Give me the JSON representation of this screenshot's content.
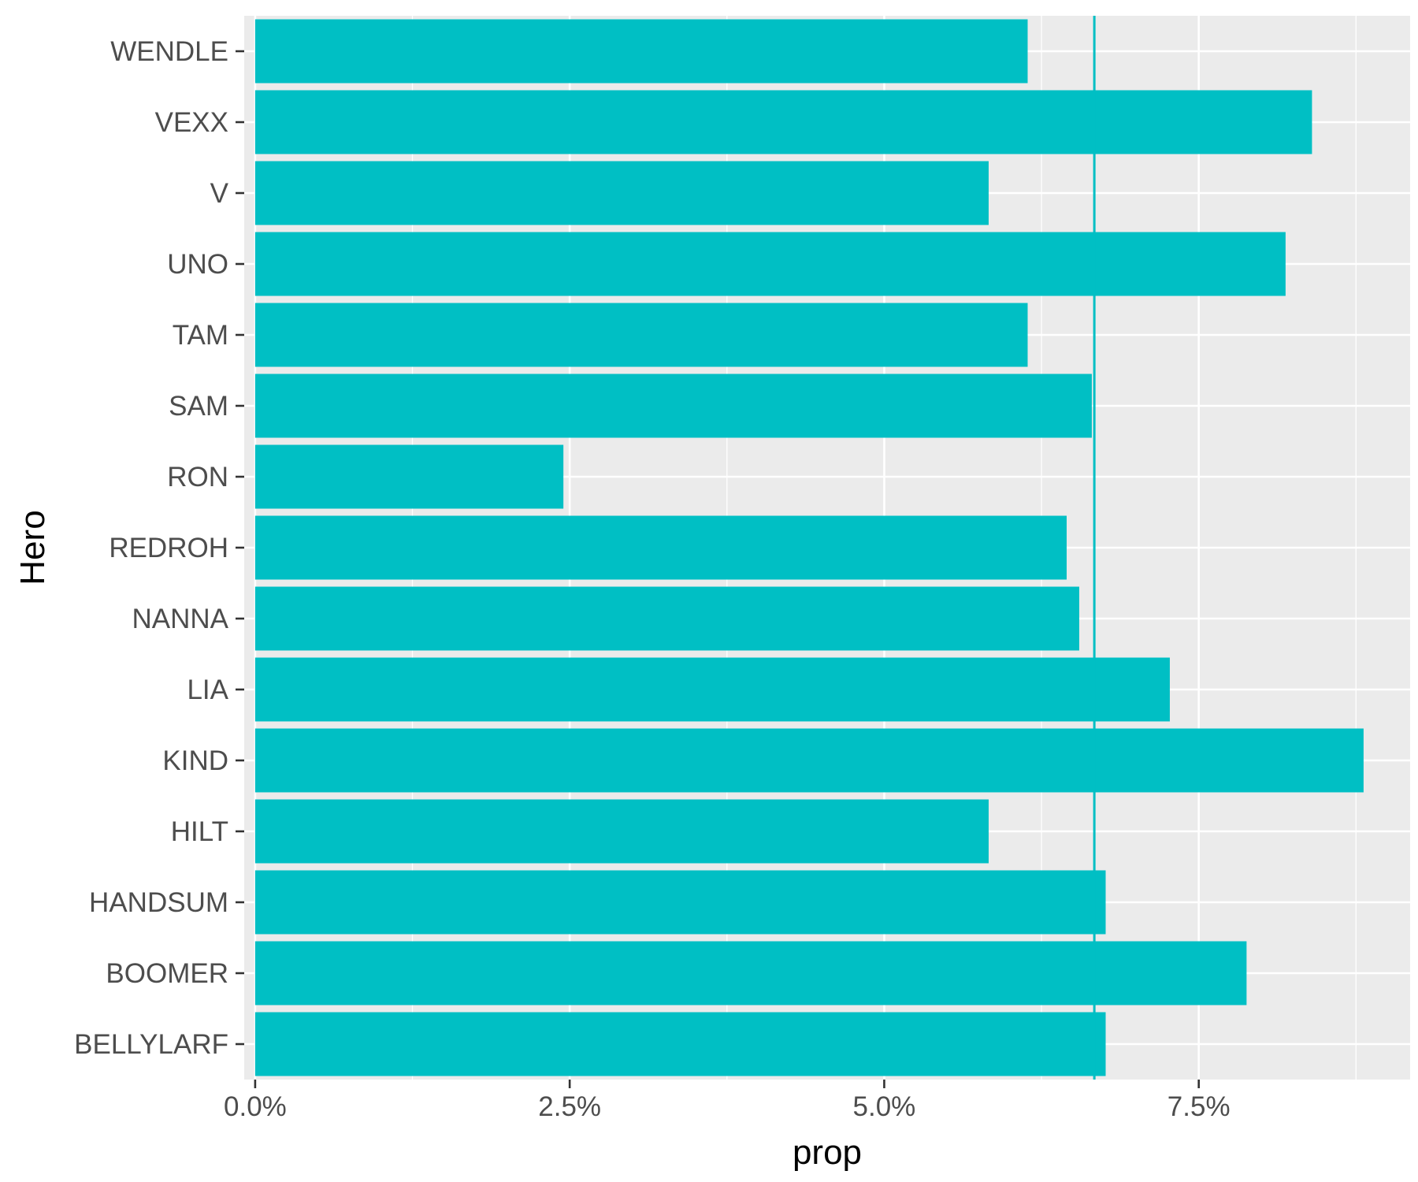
{
  "chart_data": {
    "type": "bar",
    "orientation": "horizontal",
    "xlabel": "prop",
    "ylabel": "Hero",
    "xlim": [
      -0.00087,
      0.0918
    ],
    "x_ticks": [
      0,
      0.025,
      0.05,
      0.075
    ],
    "x_tick_labels": [
      "0.0%",
      "2.5%",
      "5.0%",
      "7.5%"
    ],
    "categories": [
      "BELLYLARF",
      "BOOMER",
      "HANDSUM",
      "HILT",
      "KIND",
      "LIA",
      "NANNA",
      "REDROH",
      "RON",
      "SAM",
      "TAM",
      "UNO",
      "V",
      "VEXX",
      "WENDLE"
    ],
    "values": [
      0.0676,
      0.0788,
      0.0676,
      0.0583,
      0.0881,
      0.0727,
      0.0655,
      0.0645,
      0.0245,
      0.0665,
      0.0614,
      0.0819,
      0.0583,
      0.084,
      0.0614
    ],
    "reference_line": {
      "x": 0.0667
    },
    "bar_color": "#00bfc4",
    "panel_background": "#ebebeb",
    "grid": true,
    "legend": "none"
  }
}
